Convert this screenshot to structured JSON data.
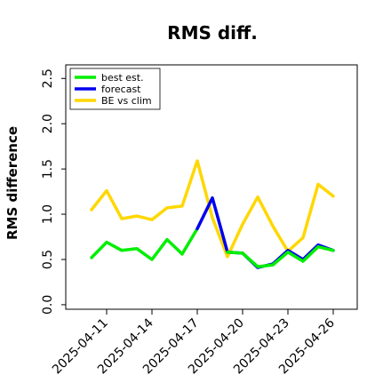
{
  "chart_data": {
    "type": "line",
    "title": "RMS diff.",
    "xlabel": "",
    "ylabel": "RMS difference",
    "x": [
      "2025-04-10",
      "2025-04-11",
      "2025-04-12",
      "2025-04-13",
      "2025-04-14",
      "2025-04-15",
      "2025-04-16",
      "2025-04-17",
      "2025-04-18",
      "2025-04-19",
      "2025-04-20",
      "2025-04-21",
      "2025-04-22",
      "2025-04-23",
      "2025-04-24",
      "2025-04-25",
      "2025-04-26"
    ],
    "xticks": [
      {
        "date": "2025-04-11",
        "label": "2025-04-11",
        "color": "#000000"
      },
      {
        "date": "2025-04-14",
        "label": "2025-04-14",
        "color": "#000000"
      },
      {
        "date": "2025-04-17",
        "label": "2025-04-17",
        "color": "#228b22"
      },
      {
        "date": "2025-04-20",
        "label": "2025-04-20",
        "color": "#000000"
      },
      {
        "date": "2025-04-23",
        "label": "2025-04-23",
        "color": "#000000"
      },
      {
        "date": "2025-04-26",
        "label": "2025-04-26",
        "color": "#000000"
      }
    ],
    "ylim": [
      -0.05,
      2.65
    ],
    "yticks": [
      "0.0",
      "0.5",
      "1.0",
      "1.5",
      "2.0",
      "2.5"
    ],
    "grid": false,
    "legend_position": "top-left",
    "series": [
      {
        "name": "best est.",
        "color": "#00ee00",
        "values": [
          0.52,
          0.69,
          0.6,
          0.62,
          0.5,
          0.72,
          0.56,
          0.84,
          null,
          null,
          null,
          null,
          null,
          null,
          null,
          null,
          null
        ]
      },
      {
        "name": "forecast",
        "color": "#0000ee",
        "values": [
          null,
          null,
          null,
          null,
          null,
          null,
          null,
          0.84,
          1.18,
          0.58,
          0.57,
          0.41,
          0.45,
          0.6,
          0.5,
          0.66,
          0.6
        ]
      },
      {
        "name": "BE vs clim",
        "color": "#ffd700",
        "values": [
          1.05,
          1.26,
          0.95,
          0.98,
          0.94,
          1.07,
          1.09,
          1.59,
          0.96,
          0.53,
          0.89,
          1.19,
          0.87,
          0.59,
          0.74,
          1.33,
          1.2
        ]
      },
      {
        "name": "",
        "color": "#00ee00",
        "values": [
          null,
          null,
          null,
          null,
          null,
          null,
          null,
          null,
          null,
          0.58,
          0.57,
          0.42,
          0.44,
          0.58,
          0.48,
          0.64,
          0.6
        ]
      }
    ]
  }
}
